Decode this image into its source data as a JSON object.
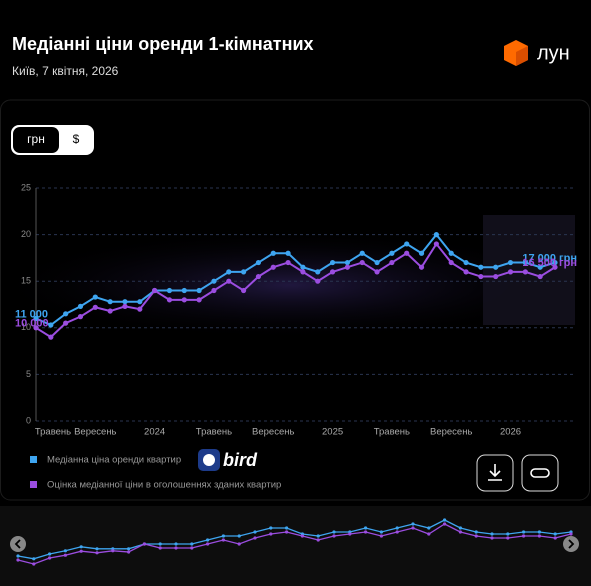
{
  "header": {
    "title": "Медіанні ціни оренди 1-кімнатних",
    "subtitle": "Київ, 7 квітня, 2026",
    "logo": "лун"
  },
  "currency_toggle": [
    "грн",
    "$"
  ],
  "chart_data": {
    "type": "line",
    "categories": [
      "Травень",
      null,
      null,
      null,
      "Вересень",
      null,
      null,
      null,
      "2024",
      null,
      null,
      null,
      "Травень",
      null,
      null,
      null,
      "Вересень",
      null,
      null,
      null,
      "2025",
      null,
      null,
      null,
      "Травень",
      null,
      null,
      null,
      "Вересень",
      null,
      null,
      null,
      "2026",
      null,
      null,
      null
    ],
    "series": [
      {
        "name": "Медіанна ціна оренди квартир",
        "color": "#3ea5f0",
        "values": [
          11,
          10.3,
          11.5,
          12.3,
          13.3,
          12.8,
          12.8,
          12.8,
          14,
          14,
          14,
          14,
          15,
          16,
          16,
          17,
          18,
          18,
          16.5,
          16,
          17,
          17,
          18,
          17,
          18,
          19,
          18,
          20,
          18,
          17,
          16.5,
          16.5,
          17,
          17,
          16.5,
          17
        ],
        "value_labels": [
          "11 000",
          null,
          null,
          null,
          null,
          null,
          null,
          null,
          null,
          null,
          null,
          null,
          null,
          null,
          null,
          null,
          null,
          null,
          null,
          null,
          null,
          null,
          null,
          null,
          null,
          null,
          null,
          null,
          null,
          null,
          null,
          null,
          null,
          null,
          null,
          "17 000 грн"
        ]
      },
      {
        "name": "Оцінка медіанної ціни в оголошеннях зданих квартир",
        "color": "#9b4de0",
        "values": [
          10,
          9,
          10.5,
          11.2,
          12.2,
          11.8,
          12.3,
          12,
          14,
          13,
          13,
          13,
          14,
          15,
          14,
          15.5,
          16.5,
          17,
          16,
          15,
          16,
          16.5,
          17,
          16,
          17,
          18,
          16.5,
          19,
          17,
          16,
          15.5,
          15.5,
          16,
          16,
          15.5,
          16.5
        ],
        "value_labels": [
          "10 000",
          null,
          null,
          null,
          null,
          null,
          null,
          null,
          null,
          null,
          null,
          null,
          null,
          null,
          null,
          null,
          null,
          null,
          null,
          null,
          null,
          null,
          null,
          null,
          null,
          null,
          null,
          null,
          null,
          null,
          null,
          null,
          null,
          null,
          null,
          "16 500 грн"
        ]
      }
    ],
    "ylim": [
      0,
      25
    ],
    "yticks": [
      0,
      5,
      10,
      15,
      20,
      25
    ],
    "grid": true
  },
  "legend_badge": "bird"
}
